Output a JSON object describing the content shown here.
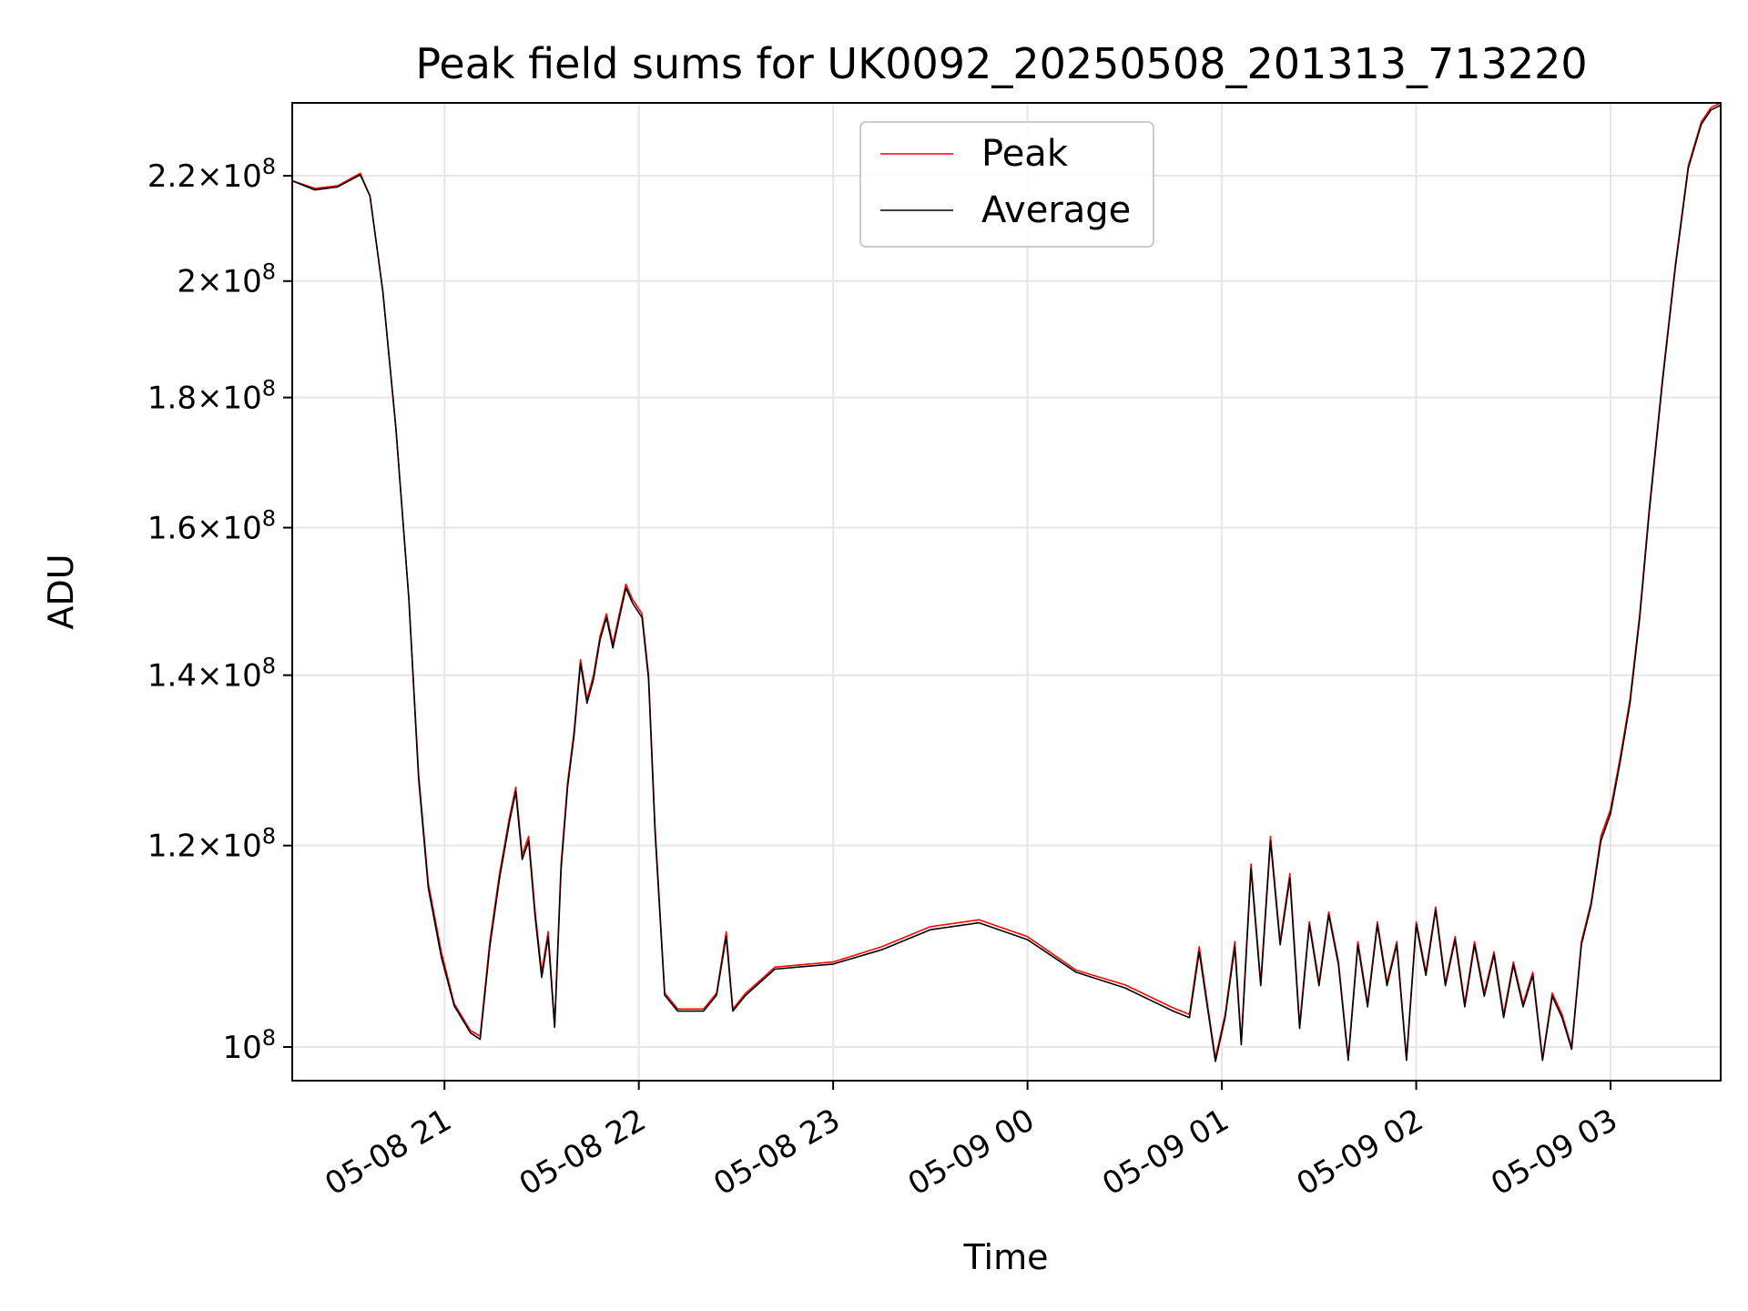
{
  "chart_data": {
    "type": "line",
    "title": "Peak field sums for UK0092_20250508_201313_713220",
    "xlabel": "Time",
    "ylabel": "ADU",
    "yscale": "log",
    "grid": true,
    "legend_position": "top-center",
    "xlim": [
      "2025-05-08 20:13",
      "2025-05-09 03:34"
    ],
    "ylim": [
      97000000,
      235000000
    ],
    "x_ticks": [
      {
        "value": "2025-05-08 21:00",
        "label": "05-08 21"
      },
      {
        "value": "2025-05-08 22:00",
        "label": "05-08 22"
      },
      {
        "value": "2025-05-08 23:00",
        "label": "05-08 23"
      },
      {
        "value": "2025-05-09 00:00",
        "label": "05-09 00"
      },
      {
        "value": "2025-05-09 01:00",
        "label": "05-09 01"
      },
      {
        "value": "2025-05-09 02:00",
        "label": "05-09 02"
      },
      {
        "value": "2025-05-09 03:00",
        "label": "05-09 03"
      }
    ],
    "y_ticks": [
      {
        "value": 100000000,
        "mantissa": "",
        "exponent": "8"
      },
      {
        "value": 120000000,
        "mantissa": "1.2",
        "exponent": "8"
      },
      {
        "value": 140000000,
        "mantissa": "1.4",
        "exponent": "8"
      },
      {
        "value": 160000000,
        "mantissa": "1.6",
        "exponent": "8"
      },
      {
        "value": 180000000,
        "mantissa": "1.8",
        "exponent": "8"
      },
      {
        "value": 200000000,
        "mantissa": "2",
        "exponent": "8"
      },
      {
        "value": 220000000,
        "mantissa": "2.2",
        "exponent": "8"
      }
    ],
    "series": [
      {
        "name": "Peak",
        "color": "#ff0000",
        "points": [
          [
            "2025-05-08 20:13",
            219000000
          ],
          [
            "2025-05-08 20:20",
            217500000
          ],
          [
            "2025-05-08 20:27",
            218000000
          ],
          [
            "2025-05-08 20:34",
            220500000
          ],
          [
            "2025-05-08 20:37",
            216000000
          ],
          [
            "2025-05-08 20:41",
            198000000
          ],
          [
            "2025-05-08 20:45",
            175000000
          ],
          [
            "2025-05-08 20:49",
            150000000
          ],
          [
            "2025-05-08 20:52",
            128000000
          ],
          [
            "2025-05-08 20:55",
            116000000
          ],
          [
            "2025-05-08 20:59",
            109000000
          ],
          [
            "2025-05-08 21:03",
            104000000
          ],
          [
            "2025-05-08 21:08",
            101500000
          ],
          [
            "2025-05-08 21:11",
            101000000
          ],
          [
            "2025-05-08 21:14",
            110000000
          ],
          [
            "2025-05-08 21:17",
            117000000
          ],
          [
            "2025-05-08 21:20",
            123000000
          ],
          [
            "2025-05-08 21:22",
            126500000
          ],
          [
            "2025-05-08 21:24",
            119000000
          ],
          [
            "2025-05-08 21:26",
            121000000
          ],
          [
            "2025-05-08 21:28",
            113000000
          ],
          [
            "2025-05-08 21:30",
            107000000
          ],
          [
            "2025-05-08 21:32",
            111000000
          ],
          [
            "2025-05-08 21:34",
            102000000
          ],
          [
            "2025-05-08 21:36",
            118000000
          ],
          [
            "2025-05-08 21:38",
            127000000
          ],
          [
            "2025-05-08 21:40",
            133000000
          ],
          [
            "2025-05-08 21:42",
            142000000
          ],
          [
            "2025-05-08 21:44",
            137000000
          ],
          [
            "2025-05-08 21:46",
            140000000
          ],
          [
            "2025-05-08 21:48",
            145000000
          ],
          [
            "2025-05-08 21:50",
            148000000
          ],
          [
            "2025-05-08 21:52",
            144000000
          ],
          [
            "2025-05-08 21:54",
            148000000
          ],
          [
            "2025-05-08 21:56",
            152000000
          ],
          [
            "2025-05-08 21:58",
            150000000
          ],
          [
            "2025-05-08 22:01",
            148000000
          ],
          [
            "2025-05-08 22:03",
            140000000
          ],
          [
            "2025-05-08 22:05",
            122000000
          ],
          [
            "2025-05-08 22:08",
            105000000
          ],
          [
            "2025-05-08 22:12",
            103500000
          ],
          [
            "2025-05-08 22:20",
            103500000
          ],
          [
            "2025-05-08 22:24",
            105000000
          ],
          [
            "2025-05-08 22:27",
            111000000
          ],
          [
            "2025-05-08 22:29",
            103500000
          ],
          [
            "2025-05-08 22:33",
            105000000
          ],
          [
            "2025-05-08 22:42",
            107500000
          ],
          [
            "2025-05-08 23:00",
            108000000
          ],
          [
            "2025-05-08 23:15",
            109500000
          ],
          [
            "2025-05-08 23:30",
            111500000
          ],
          [
            "2025-05-08 23:45",
            112200000
          ],
          [
            "2025-05-09 00:00",
            110500000
          ],
          [
            "2025-05-09 00:15",
            107200000
          ],
          [
            "2025-05-09 00:30",
            105800000
          ],
          [
            "2025-05-09 00:45",
            103600000
          ],
          [
            "2025-05-09 00:50",
            103000000
          ],
          [
            "2025-05-09 00:53",
            109500000
          ],
          [
            "2025-05-09 00:56",
            103000000
          ],
          [
            "2025-05-09 00:58",
            99000000
          ],
          [
            "2025-05-09 01:01",
            103000000
          ],
          [
            "2025-05-09 01:04",
            110000000
          ],
          [
            "2025-05-09 01:06",
            100500000
          ],
          [
            "2025-05-09 01:09",
            118000000
          ],
          [
            "2025-05-09 01:12",
            106000000
          ],
          [
            "2025-05-09 01:15",
            121000000
          ],
          [
            "2025-05-09 01:18",
            110000000
          ],
          [
            "2025-05-09 01:21",
            117000000
          ],
          [
            "2025-05-09 01:24",
            102000000
          ],
          [
            "2025-05-09 01:27",
            112000000
          ],
          [
            "2025-05-09 01:30",
            106000000
          ],
          [
            "2025-05-09 01:33",
            113000000
          ],
          [
            "2025-05-09 01:36",
            108000000
          ],
          [
            "2025-05-09 01:39",
            99000000
          ],
          [
            "2025-05-09 01:42",
            110000000
          ],
          [
            "2025-05-09 01:45",
            104000000
          ],
          [
            "2025-05-09 01:48",
            112000000
          ],
          [
            "2025-05-09 01:51",
            106000000
          ],
          [
            "2025-05-09 01:54",
            110000000
          ],
          [
            "2025-05-09 01:57",
            99000000
          ],
          [
            "2025-05-09 02:00",
            112000000
          ],
          [
            "2025-05-09 02:03",
            107000000
          ],
          [
            "2025-05-09 02:06",
            113500000
          ],
          [
            "2025-05-09 02:09",
            106000000
          ],
          [
            "2025-05-09 02:12",
            110500000
          ],
          [
            "2025-05-09 02:15",
            104000000
          ],
          [
            "2025-05-09 02:18",
            110000000
          ],
          [
            "2025-05-09 02:21",
            105000000
          ],
          [
            "2025-05-09 02:24",
            109000000
          ],
          [
            "2025-05-09 02:27",
            103000000
          ],
          [
            "2025-05-09 02:30",
            108000000
          ],
          [
            "2025-05-09 02:33",
            104000000
          ],
          [
            "2025-05-09 02:36",
            107000000
          ],
          [
            "2025-05-09 02:39",
            99000000
          ],
          [
            "2025-05-09 02:42",
            105000000
          ],
          [
            "2025-05-09 02:45",
            103000000
          ],
          [
            "2025-05-09 02:48",
            100000000
          ],
          [
            "2025-05-09 02:51",
            110000000
          ],
          [
            "2025-05-09 02:54",
            114000000
          ],
          [
            "2025-05-09 02:57",
            121000000
          ],
          [
            "2025-05-09 03:00",
            124000000
          ],
          [
            "2025-05-09 03:03",
            130000000
          ],
          [
            "2025-05-09 03:06",
            137000000
          ],
          [
            "2025-05-09 03:09",
            148000000
          ],
          [
            "2025-05-09 03:12",
            163000000
          ],
          [
            "2025-05-09 03:16",
            183000000
          ],
          [
            "2025-05-09 03:20",
            203000000
          ],
          [
            "2025-05-09 03:24",
            222000000
          ],
          [
            "2025-05-09 03:28",
            231000000
          ],
          [
            "2025-05-09 03:31",
            234000000
          ],
          [
            "2025-05-09 03:34",
            235000000
          ]
        ]
      },
      {
        "name": "Average",
        "color": "#000000",
        "points": [
          [
            "2025-05-08 20:13",
            219000000
          ],
          [
            "2025-05-08 20:20",
            217200000
          ],
          [
            "2025-05-08 20:27",
            217800000
          ],
          [
            "2025-05-08 20:34",
            220200000
          ],
          [
            "2025-05-08 20:37",
            216000000
          ],
          [
            "2025-05-08 20:41",
            198000000
          ],
          [
            "2025-05-08 20:45",
            175000000
          ],
          [
            "2025-05-08 20:49",
            150000000
          ],
          [
            "2025-05-08 20:52",
            127500000
          ],
          [
            "2025-05-08 20:55",
            115500000
          ],
          [
            "2025-05-08 20:59",
            108500000
          ],
          [
            "2025-05-08 21:03",
            103800000
          ],
          [
            "2025-05-08 21:08",
            101300000
          ],
          [
            "2025-05-08 21:11",
            100700000
          ],
          [
            "2025-05-08 21:14",
            109500000
          ],
          [
            "2025-05-08 21:17",
            116500000
          ],
          [
            "2025-05-08 21:20",
            122500000
          ],
          [
            "2025-05-08 21:22",
            126000000
          ],
          [
            "2025-05-08 21:24",
            118500000
          ],
          [
            "2025-05-08 21:26",
            120500000
          ],
          [
            "2025-05-08 21:28",
            112500000
          ],
          [
            "2025-05-08 21:30",
            106500000
          ],
          [
            "2025-05-08 21:32",
            110500000
          ],
          [
            "2025-05-08 21:34",
            101800000
          ],
          [
            "2025-05-08 21:36",
            117500000
          ],
          [
            "2025-05-08 21:38",
            126500000
          ],
          [
            "2025-05-08 21:40",
            132500000
          ],
          [
            "2025-05-08 21:42",
            141500000
          ],
          [
            "2025-05-08 21:44",
            136500000
          ],
          [
            "2025-05-08 21:46",
            139500000
          ],
          [
            "2025-05-08 21:48",
            144500000
          ],
          [
            "2025-05-08 21:50",
            147500000
          ],
          [
            "2025-05-08 21:52",
            143500000
          ],
          [
            "2025-05-08 21:54",
            147500000
          ],
          [
            "2025-05-08 21:56",
            151500000
          ],
          [
            "2025-05-08 21:58",
            149500000
          ],
          [
            "2025-05-08 22:01",
            147500000
          ],
          [
            "2025-05-08 22:03",
            139500000
          ],
          [
            "2025-05-08 22:05",
            121500000
          ],
          [
            "2025-05-08 22:08",
            104800000
          ],
          [
            "2025-05-08 22:12",
            103300000
          ],
          [
            "2025-05-08 22:20",
            103300000
          ],
          [
            "2025-05-08 22:24",
            104800000
          ],
          [
            "2025-05-08 22:27",
            110500000
          ],
          [
            "2025-05-08 22:29",
            103300000
          ],
          [
            "2025-05-08 22:33",
            104800000
          ],
          [
            "2025-05-08 22:42",
            107300000
          ],
          [
            "2025-05-08 23:00",
            107800000
          ],
          [
            "2025-05-08 23:15",
            109200000
          ],
          [
            "2025-05-08 23:30",
            111200000
          ],
          [
            "2025-05-08 23:45",
            111900000
          ],
          [
            "2025-05-09 00:00",
            110200000
          ],
          [
            "2025-05-09 00:15",
            107000000
          ],
          [
            "2025-05-09 00:30",
            105500000
          ],
          [
            "2025-05-09 00:45",
            103300000
          ],
          [
            "2025-05-09 00:50",
            102700000
          ],
          [
            "2025-05-09 00:53",
            109000000
          ],
          [
            "2025-05-09 00:56",
            102700000
          ],
          [
            "2025-05-09 00:58",
            98700000
          ],
          [
            "2025-05-09 01:01",
            102700000
          ],
          [
            "2025-05-09 01:04",
            109500000
          ],
          [
            "2025-05-09 01:06",
            100200000
          ],
          [
            "2025-05-09 01:09",
            117500000
          ],
          [
            "2025-05-09 01:12",
            105700000
          ],
          [
            "2025-05-09 01:15",
            120500000
          ],
          [
            "2025-05-09 01:18",
            109700000
          ],
          [
            "2025-05-09 01:21",
            116500000
          ],
          [
            "2025-05-09 01:24",
            101700000
          ],
          [
            "2025-05-09 01:27",
            111700000
          ],
          [
            "2025-05-09 01:30",
            105700000
          ],
          [
            "2025-05-09 01:33",
            112700000
          ],
          [
            "2025-05-09 01:36",
            107700000
          ],
          [
            "2025-05-09 01:39",
            98800000
          ],
          [
            "2025-05-09 01:42",
            109700000
          ],
          [
            "2025-05-09 01:45",
            103700000
          ],
          [
            "2025-05-09 01:48",
            111700000
          ],
          [
            "2025-05-09 01:51",
            105700000
          ],
          [
            "2025-05-09 01:54",
            109700000
          ],
          [
            "2025-05-09 01:57",
            98800000
          ],
          [
            "2025-05-09 02:00",
            111700000
          ],
          [
            "2025-05-09 02:03",
            106700000
          ],
          [
            "2025-05-09 02:06",
            113200000
          ],
          [
            "2025-05-09 02:09",
            105700000
          ],
          [
            "2025-05-09 02:12",
            110200000
          ],
          [
            "2025-05-09 02:15",
            103700000
          ],
          [
            "2025-05-09 02:18",
            109700000
          ],
          [
            "2025-05-09 02:21",
            104700000
          ],
          [
            "2025-05-09 02:24",
            108700000
          ],
          [
            "2025-05-09 02:27",
            102700000
          ],
          [
            "2025-05-09 02:30",
            107700000
          ],
          [
            "2025-05-09 02:33",
            103700000
          ],
          [
            "2025-05-09 02:36",
            106700000
          ],
          [
            "2025-05-09 02:39",
            98800000
          ],
          [
            "2025-05-09 02:42",
            104700000
          ],
          [
            "2025-05-09 02:45",
            102700000
          ],
          [
            "2025-05-09 02:48",
            99800000
          ],
          [
            "2025-05-09 02:51",
            109700000
          ],
          [
            "2025-05-09 02:54",
            113700000
          ],
          [
            "2025-05-09 02:57",
            120500000
          ],
          [
            "2025-05-09 03:00",
            123500000
          ],
          [
            "2025-05-09 03:03",
            129500000
          ],
          [
            "2025-05-09 03:06",
            136500000
          ],
          [
            "2025-05-09 03:09",
            147500000
          ],
          [
            "2025-05-09 03:12",
            162500000
          ],
          [
            "2025-05-09 03:16",
            182500000
          ],
          [
            "2025-05-09 03:20",
            202500000
          ],
          [
            "2025-05-09 03:24",
            221500000
          ],
          [
            "2025-05-09 03:28",
            230500000
          ],
          [
            "2025-05-09 03:31",
            233500000
          ],
          [
            "2025-05-09 03:34",
            234500000
          ]
        ]
      }
    ]
  }
}
